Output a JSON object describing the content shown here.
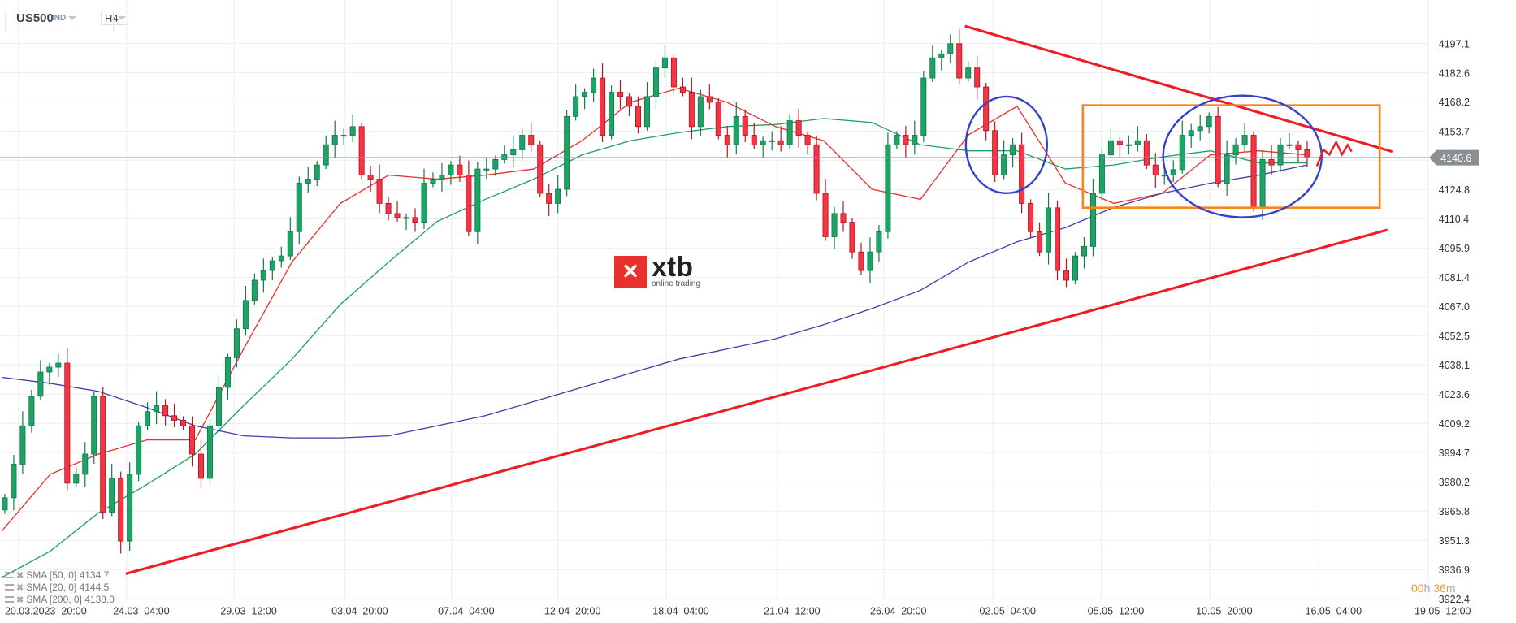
{
  "header": {
    "symbol": "US500",
    "market": "IND",
    "timeframe": "H4"
  },
  "legend": [
    {
      "label": "SMA [50,  0] 4134.7",
      "color": "#1e9e63"
    },
    {
      "label": "SMA [20,  0] 4144.5",
      "color": "#e8302d"
    },
    {
      "label": "SMA [200,  0] 4138.0",
      "color": "#3b3fa8"
    }
  ],
  "timer": {
    "hours": "00",
    "h": "h",
    "minutes": "36",
    "m": "m"
  },
  "logo": {
    "brand": "xtb",
    "tagline": "online trading"
  },
  "colors": {
    "up": "#1fa265",
    "down": "#f23645",
    "sma50": "#1e9e63",
    "sma20": "#e8302d",
    "sma200": "#3b3fa8",
    "trendline": "#ee1c25",
    "box": "#f7841e",
    "ellipse": "#3340c8",
    "price_line": "#8a8f94"
  },
  "chart_data": {
    "type": "candlestick",
    "title": "",
    "ylim": [
      3922.4,
      4197.1
    ],
    "y_ticks": [
      "4197.1",
      "4182.6",
      "4168.2",
      "4153.7",
      "4124.8",
      "4110.4",
      "4095.9",
      "4081.4",
      "4067.0",
      "4052.5",
      "4038.1",
      "4023.6",
      "4009.2",
      "3994.7",
      "3980.2",
      "3965.8",
      "3951.3",
      "3936.9",
      "3922.4"
    ],
    "x_ticks": [
      "20.03.2023  20:00",
      "24.03  04:00",
      "29.03  12:00",
      "03.04  20:00",
      "07.04  04:00",
      "12.04  20:00",
      "18.04  04:00",
      "21.04  12:00",
      "26.04  20:00",
      "02.05  04:00",
      "05.05  12:00",
      "10.05  20:00",
      "16.05  04:00",
      "19.05  12:00"
    ],
    "current_price": "4140.6",
    "closes": [
      3972.4,
      3989,
      4008,
      4022.6,
      4034.6,
      4037,
      4039,
      3979.6,
      3984,
      3994,
      4022.6,
      3965.3,
      3982,
      3951,
      3984,
      4008,
      4015,
      4017.9,
      4013,
      4010.7,
      4008,
      3994,
      3982,
      4008,
      4027,
      4041.7,
      4056,
      4070,
      4080,
      4084.8,
      4089.6,
      4092,
      4104,
      4128,
      4130,
      4137,
      4147,
      4151.7,
      4151.7,
      4156,
      4132,
      4130,
      4118,
      4113,
      4111,
      4111,
      4108.7,
      4128,
      4130,
      4132,
      4137,
      4132,
      4104,
      4135,
      4135,
      4139.7,
      4142,
      4144.5,
      4151.7,
      4147,
      4123,
      4118,
      4125,
      4161,
      4170.8,
      4173,
      4180,
      4151.7,
      4173,
      4170.8,
      4166,
      4156,
      4170.8,
      4185,
      4190,
      4175.6,
      4173,
      4156,
      4170.8,
      4168,
      4151.7,
      4147,
      4161,
      4151.7,
      4147,
      4149,
      4149,
      4147,
      4158.9,
      4151.7,
      4147,
      4123,
      4101.5,
      4113,
      4108.7,
      4094,
      4084.8,
      4094,
      4104,
      4147,
      4151.7,
      4147,
      4151.7,
      4180,
      4190,
      4192,
      4197,
      4180,
      4185,
      4175.6,
      4154,
      4132,
      4142,
      4147,
      4118,
      4104,
      4094,
      4115.8,
      4084.8,
      4080,
      4092,
      4096.7,
      4123,
      4142,
      4149,
      4147,
      4147,
      4149,
      4137,
      4132,
      4132,
      4134.7,
      4151.7,
      4154,
      4156,
      4161,
      4128,
      4142,
      4147,
      4151.7,
      4116,
      4139.7,
      4137,
      4147,
      4147,
      4144.5,
      4140.6
    ],
    "series": [
      {
        "name": "SMA [50,  0]",
        "values": [
          3933,
          3946,
          3965,
          3979,
          3994,
          4018,
          4041,
          4068,
          4089,
          4109,
          4120,
          4130,
          4142,
          4149,
          4153,
          4156,
          4157,
          4160,
          4158,
          4147,
          4144,
          4144,
          4135,
          4137,
          4141,
          4144,
          4138,
          4138
        ]
      },
      {
        "name": "SMA [20,  0]",
        "values": [
          3956,
          3984,
          3994,
          4001,
          4001,
          4046,
          4089,
          4118,
          4132,
          4130,
          4132,
          4135,
          4149,
          4168,
          4175,
          4168,
          4156,
          4149,
          4125,
          4120,
          4152,
          4166,
          4128,
          4118,
          4123,
          4142,
          4144,
          4142
        ]
      },
      {
        "name": "SMA [200,  0]",
        "values": [
          4032,
          4029,
          4025,
          4017,
          4008,
          4003,
          4002,
          4002,
          4003,
          4008,
          4013,
          4020,
          4027,
          4034,
          4041,
          4046,
          4051,
          4058,
          4066,
          4075,
          4089,
          4099,
          4106,
          4116,
          4123,
          4128,
          4132,
          4137
        ]
      }
    ],
    "annotations": {
      "resistance_trendline": [
        [
          4197.1,
          "26.04-30.04"
        ],
        [
          4140,
          "after 16.05"
        ]
      ],
      "support_trendline": [
        [
          3937,
          "24.03"
        ],
        [
          4105,
          "after 16.05"
        ]
      ],
      "consolidation_box": [
        4118,
        4167
      ],
      "ellipses": 2
    }
  }
}
